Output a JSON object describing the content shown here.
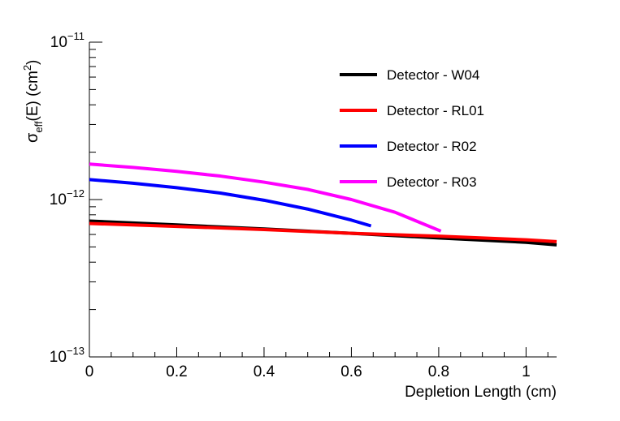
{
  "chart_data": {
    "type": "line",
    "title": "",
    "xlabel": "Depletion Length (cm)",
    "ylabel": {
      "sigma": "σ",
      "sub": "eff",
      "mid": "(E) (cm",
      "sup": "2",
      "end": ")"
    },
    "xlim": [
      0,
      1.07
    ],
    "ylim": [
      1e-13,
      1e-11
    ],
    "yscale": "log",
    "x_ticks": [
      {
        "value": 0,
        "label": "0"
      },
      {
        "value": 0.2,
        "label": "0.2"
      },
      {
        "value": 0.4,
        "label": "0.4"
      },
      {
        "value": 0.6,
        "label": "0.6"
      },
      {
        "value": 0.8,
        "label": "0.8"
      },
      {
        "value": 1.0,
        "label": "1"
      }
    ],
    "y_ticks": [
      {
        "value": 1e-13,
        "base": "10",
        "exp": "−13"
      },
      {
        "value": 1e-12,
        "base": "10",
        "exp": "−12"
      },
      {
        "value": 1e-11,
        "base": "10",
        "exp": "−11"
      }
    ],
    "legend_position": "top-right",
    "series": [
      {
        "name": "Detector - W04",
        "color": "#000000",
        "x": [
          0,
          0.2,
          0.4,
          0.6,
          0.8,
          1.0,
          1.07
        ],
        "y": [
          7.3e-13,
          6.9e-13,
          6.5e-13,
          6.1e-13,
          5.7e-13,
          5.35e-13,
          5.15e-13
        ]
      },
      {
        "name": "Detector - RL01",
        "color": "#ff0000",
        "x": [
          0,
          0.2,
          0.4,
          0.6,
          0.8,
          1.0,
          1.07
        ],
        "y": [
          7.05e-13,
          6.75e-13,
          6.45e-13,
          6.1e-13,
          5.85e-13,
          5.55e-13,
          5.4e-13
        ]
      },
      {
        "name": "Detector - R02",
        "color": "#0000ff",
        "x": [
          0,
          0.1,
          0.2,
          0.3,
          0.4,
          0.5,
          0.6,
          0.645
        ],
        "y": [
          1.34e-12,
          1.27e-12,
          1.19e-12,
          1.1e-12,
          9.9e-13,
          8.7e-13,
          7.4e-13,
          6.8e-13
        ]
      },
      {
        "name": "Detector - R03",
        "color": "#ff00ff",
        "x": [
          0,
          0.1,
          0.2,
          0.3,
          0.4,
          0.5,
          0.6,
          0.7,
          0.805
        ],
        "y": [
          1.68e-12,
          1.6e-12,
          1.51e-12,
          1.41e-12,
          1.29e-12,
          1.16e-12,
          1e-12,
          8.3e-13,
          6.3e-13
        ]
      }
    ]
  }
}
